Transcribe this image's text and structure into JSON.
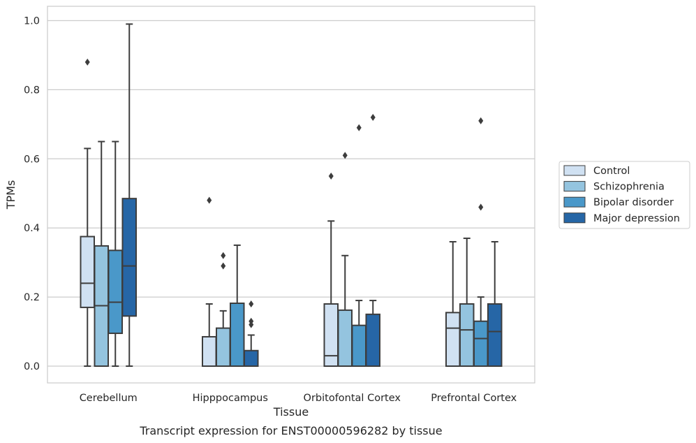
{
  "chart_data": {
    "type": "box",
    "title": "",
    "caption": "Transcript expression for ENST00000596282 by tissue",
    "xlabel": "Tissue",
    "ylabel": "TPMs",
    "ylim": [
      -0.047,
      1.04
    ],
    "yticks": [
      0.0,
      0.2,
      0.4,
      0.6,
      0.8,
      1.0
    ],
    "ytick_labels": [
      "0.0",
      "0.2",
      "0.4",
      "0.6",
      "0.8",
      "1.0"
    ],
    "grid": "horizontal",
    "legend_position": "right",
    "categories": [
      "Cerebellum",
      "Hipppocampus",
      "Orbitofontal Cortex",
      "Prefrontal Cortex"
    ],
    "series": [
      {
        "name": "Control",
        "color": "#d0e1f2",
        "boxes": [
          {
            "q1": 0.17,
            "median": 0.24,
            "q3": 0.375,
            "whisker_low": 0.0,
            "whisker_high": 0.63,
            "outliers": [
              0.88
            ]
          },
          {
            "q1": 0.0,
            "median": 0.0,
            "q3": 0.085,
            "whisker_low": 0.0,
            "whisker_high": 0.18,
            "outliers": [
              0.48
            ]
          },
          {
            "q1": 0.0,
            "median": 0.03,
            "q3": 0.18,
            "whisker_low": 0.0,
            "whisker_high": 0.42,
            "outliers": [
              0.55
            ]
          },
          {
            "q1": 0.0,
            "median": 0.11,
            "q3": 0.155,
            "whisker_low": 0.0,
            "whisker_high": 0.36,
            "outliers": []
          }
        ]
      },
      {
        "name": "Schizophrenia",
        "color": "#94c4df",
        "boxes": [
          {
            "q1": 0.0,
            "median": 0.175,
            "q3": 0.348,
            "whisker_low": 0.0,
            "whisker_high": 0.65,
            "outliers": []
          },
          {
            "q1": 0.0,
            "median": 0.0,
            "q3": 0.11,
            "whisker_low": 0.0,
            "whisker_high": 0.16,
            "outliers": [
              0.32,
              0.29
            ]
          },
          {
            "q1": 0.0,
            "median": 0.0,
            "q3": 0.162,
            "whisker_low": 0.0,
            "whisker_high": 0.32,
            "outliers": [
              0.61
            ]
          },
          {
            "q1": 0.0,
            "median": 0.105,
            "q3": 0.18,
            "whisker_low": 0.0,
            "whisker_high": 0.37,
            "outliers": []
          }
        ]
      },
      {
        "name": "Bipolar disorder",
        "color": "#4a98c9",
        "boxes": [
          {
            "q1": 0.095,
            "median": 0.185,
            "q3": 0.335,
            "whisker_low": 0.0,
            "whisker_high": 0.65,
            "outliers": []
          },
          {
            "q1": 0.0,
            "median": 0.0,
            "q3": 0.182,
            "whisker_low": 0.0,
            "whisker_high": 0.35,
            "outliers": []
          },
          {
            "q1": 0.0,
            "median": 0.0,
            "q3": 0.118,
            "whisker_low": 0.0,
            "whisker_high": 0.19,
            "outliers": [
              0.69
            ]
          },
          {
            "q1": 0.0,
            "median": 0.08,
            "q3": 0.13,
            "whisker_low": 0.0,
            "whisker_high": 0.2,
            "outliers": [
              0.71,
              0.46
            ]
          }
        ]
      },
      {
        "name": "Major depression",
        "color": "#2666a6",
        "boxes": [
          {
            "q1": 0.145,
            "median": 0.29,
            "q3": 0.485,
            "whisker_low": 0.0,
            "whisker_high": 0.99,
            "outliers": []
          },
          {
            "q1": 0.0,
            "median": 0.0,
            "q3": 0.045,
            "whisker_low": 0.0,
            "whisker_high": 0.09,
            "outliers": [
              0.18,
              0.13,
              0.12
            ]
          },
          {
            "q1": 0.0,
            "median": 0.0,
            "q3": 0.15,
            "whisker_low": 0.0,
            "whisker_high": 0.19,
            "outliers": [
              0.72
            ]
          },
          {
            "q1": 0.0,
            "median": 0.1,
            "q3": 0.18,
            "whisker_low": 0.0,
            "whisker_high": 0.36,
            "outliers": []
          }
        ]
      }
    ]
  }
}
